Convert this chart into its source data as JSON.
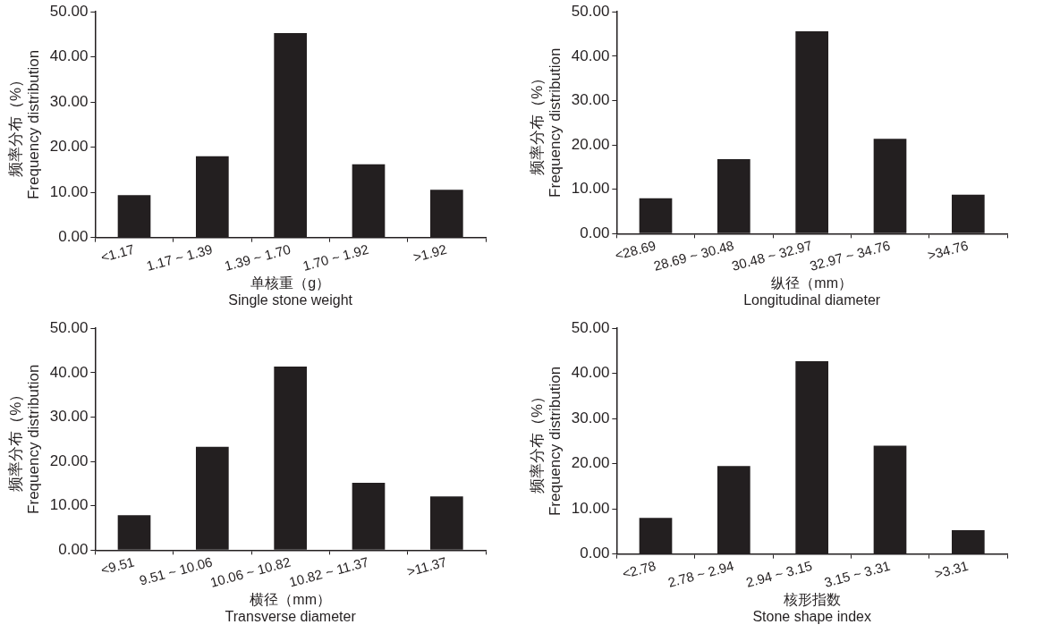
{
  "chart_data": [
    {
      "type": "bar",
      "categories": [
        "<1.17",
        "1.17 ~ 1.39",
        "1.39 ~ 1.70",
        "1.70 ~ 1.92",
        ">1.92"
      ],
      "values": [
        9.4,
        18.0,
        45.3,
        16.2,
        10.6
      ],
      "color": "#231f20",
      "xlabel": "单核重（g）\nSingle stone weight",
      "ylabel": "频率分布（%）\nFrequency distribution",
      "ylim": [
        0,
        50
      ],
      "yticks": [
        {
          "value": 0,
          "label": "0.00"
        },
        {
          "value": 10,
          "label": "10.00"
        },
        {
          "value": 20,
          "label": "20.00"
        },
        {
          "value": 30,
          "label": "30.00"
        },
        {
          "value": 40,
          "label": "40.00"
        },
        {
          "value": 50,
          "label": "50.00"
        }
      ],
      "grid": false,
      "legend": false
    },
    {
      "type": "bar",
      "categories": [
        "<28.69",
        "28.69 ~ 30.48",
        "30.48 ~ 32.97",
        "32.97 ~ 34.76",
        ">34.76"
      ],
      "values": [
        8.0,
        16.8,
        45.6,
        21.4,
        8.8
      ],
      "color": "#231f20",
      "xlabel": "纵径（mm）\nLongitudinal diameter",
      "ylabel": "频率分布（%）\nFrequency distribution",
      "ylim": [
        0,
        50
      ],
      "yticks": [
        {
          "value": 0,
          "label": "0.00"
        },
        {
          "value": 10,
          "label": "10.00"
        },
        {
          "value": 20,
          "label": "20.00"
        },
        {
          "value": 30,
          "label": "30.00"
        },
        {
          "value": 40,
          "label": "40.00"
        },
        {
          "value": 50,
          "label": "50.00"
        }
      ],
      "grid": false,
      "legend": false
    },
    {
      "type": "bar",
      "categories": [
        "<9.51",
        "9.51 ~ 10.06",
        "10.06 ~ 10.82",
        "10.82 ~ 11.37",
        ">11.37"
      ],
      "values": [
        7.9,
        23.3,
        41.4,
        15.2,
        12.1
      ],
      "color": "#231f20",
      "xlabel": "横径（mm）\nTransverse diameter",
      "ylabel": "频率分布（%）\nFrequency distribution",
      "ylim": [
        0,
        50
      ],
      "yticks": [
        {
          "value": 0,
          "label": "0.00"
        },
        {
          "value": 10,
          "label": "10.00"
        },
        {
          "value": 20,
          "label": "20.00"
        },
        {
          "value": 30,
          "label": "30.00"
        },
        {
          "value": 40,
          "label": "40.00"
        },
        {
          "value": 50,
          "label": "50.00"
        }
      ],
      "grid": false,
      "legend": false
    },
    {
      "type": "bar",
      "categories": [
        "<2.78",
        "2.78 ~ 2.94",
        "2.94 ~ 3.15",
        "3.15 ~ 3.31",
        ">3.31"
      ],
      "values": [
        8.0,
        19.5,
        42.7,
        24.0,
        5.3
      ],
      "color": "#231f20",
      "xlabel": "核形指数\nStone shape index",
      "ylabel": "频率分布（%）\nFrequency distribution",
      "ylim": [
        0,
        50
      ],
      "yticks": [
        {
          "value": 0,
          "label": "0.00"
        },
        {
          "value": 10,
          "label": "10.00"
        },
        {
          "value": 20,
          "label": "20.00"
        },
        {
          "value": 30,
          "label": "30.00"
        },
        {
          "value": 40,
          "label": "40.00"
        },
        {
          "value": 50,
          "label": "50.00"
        }
      ],
      "grid": false,
      "legend": false
    }
  ]
}
